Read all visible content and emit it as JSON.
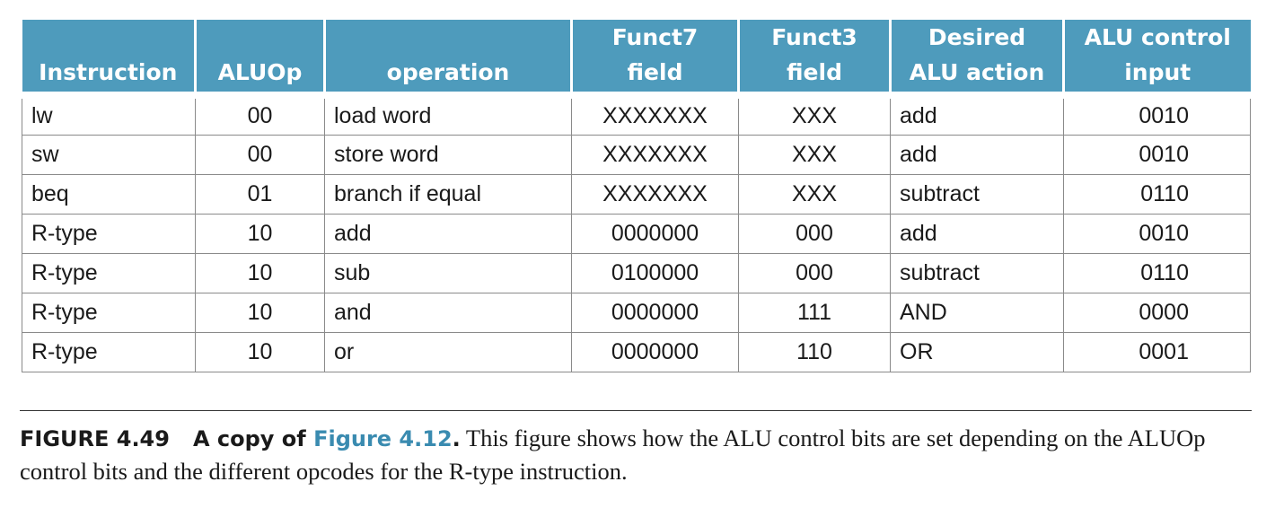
{
  "table": {
    "headers": [
      [
        "",
        "Instruction"
      ],
      [
        "",
        "ALUOp"
      ],
      [
        "",
        "operation"
      ],
      [
        "Funct7",
        "field"
      ],
      [
        "Funct3",
        "field"
      ],
      [
        "Desired",
        "ALU action"
      ],
      [
        "ALU control",
        "input"
      ]
    ],
    "rows": [
      [
        "lw",
        "00",
        "load word",
        "XXXXXXX",
        "XXX",
        "add",
        "0010"
      ],
      [
        "sw",
        "00",
        "store word",
        "XXXXXXX",
        "XXX",
        "add",
        "0010"
      ],
      [
        "beq",
        "01",
        "branch if equal",
        "XXXXXXX",
        "XXX",
        "subtract",
        "0110"
      ],
      [
        "R-type",
        "10",
        "add",
        "0000000",
        "000",
        "add",
        "0010"
      ],
      [
        "R-type",
        "10",
        "sub",
        "0100000",
        "000",
        "subtract",
        "0110"
      ],
      [
        "R-type",
        "10",
        "and",
        "0000000",
        "111",
        "AND",
        "0000"
      ],
      [
        "R-type",
        "10",
        "or",
        "0000000",
        "110",
        "OR",
        "0001"
      ]
    ]
  },
  "caption": {
    "label": "FIGURE 4.49",
    "title_prefix": "A copy of ",
    "title_link": "Figure 4.12",
    "title_suffix": ".",
    "body": " This figure shows how the ALU control bits are set depending on the ALUOp control bits and the different opcodes for the R-type instruction."
  },
  "colors": {
    "header_bg": "#4e9bbc",
    "link": "#3a8bb0"
  }
}
